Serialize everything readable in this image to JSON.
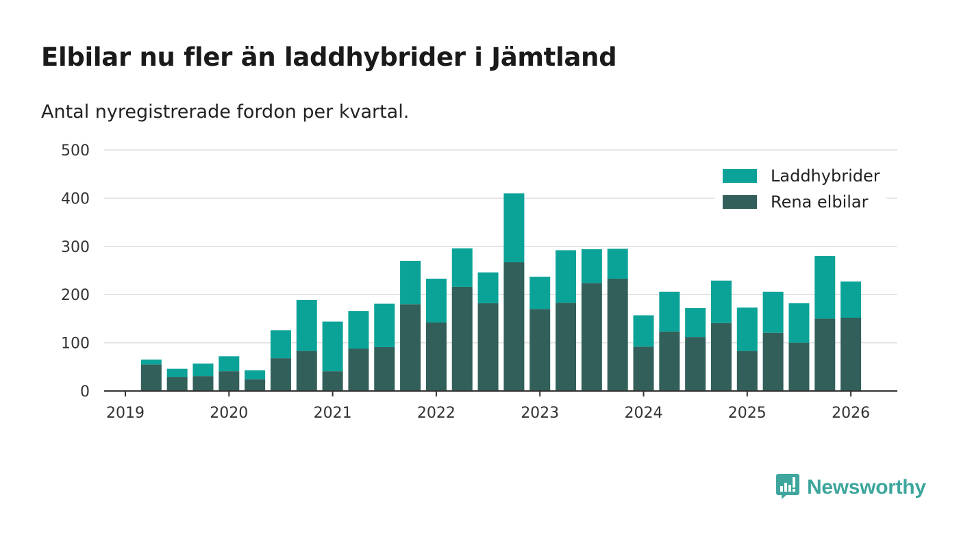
{
  "header": {
    "title": "Elbilar nu fler än laddhybrider i Jämtland",
    "subtitle": "Antal nyregistrerade fordon per kvartal."
  },
  "brand": {
    "name": "Newsworthy",
    "icon": "newsworthy-logo-icon",
    "color": "#3ea69c"
  },
  "colors": {
    "laddhybrider": "#0ba398",
    "elbilar": "#325f59",
    "grid": "#dddddd",
    "axis": "#333333"
  },
  "chart_data": {
    "type": "bar",
    "stacked": true,
    "title": "Elbilar nu fler än laddhybrider i Jämtland",
    "subtitle": "Antal nyregistrerade fordon per kvartal.",
    "xlabel": "",
    "ylabel": "",
    "ylim": [
      0,
      500
    ],
    "yticks": [
      0,
      100,
      200,
      300,
      400,
      500
    ],
    "xticks": [
      "2019",
      "2020",
      "2021",
      "2022",
      "2023",
      "2024",
      "2025",
      "2026"
    ],
    "x_start_year": 2019,
    "x_end_year": 2026.5,
    "legend_position": "top-right",
    "categories": [
      "2019 Q2",
      "2019 Q3",
      "2019 Q4",
      "2020 Q1",
      "2020 Q2",
      "2020 Q3",
      "2020 Q4",
      "2021 Q1",
      "2021 Q2",
      "2021 Q3",
      "2021 Q4",
      "2022 Q1",
      "2022 Q2",
      "2022 Q3",
      "2022 Q4",
      "2023 Q1",
      "2023 Q2",
      "2023 Q3",
      "2023 Q4",
      "2024 Q1",
      "2024 Q2",
      "2024 Q3",
      "2024 Q4",
      "2025 Q1",
      "2025 Q2",
      "2025 Q3",
      "2025 Q4",
      "2026 Q1"
    ],
    "x_positions": [
      2019.25,
      2019.5,
      2019.75,
      2020.0,
      2020.25,
      2020.5,
      2020.75,
      2021.0,
      2021.25,
      2021.5,
      2021.75,
      2022.0,
      2022.25,
      2022.5,
      2022.75,
      2023.0,
      2023.25,
      2023.5,
      2023.75,
      2024.0,
      2024.25,
      2024.5,
      2024.75,
      2025.0,
      2025.25,
      2025.5,
      2025.75,
      2026.0
    ],
    "series": [
      {
        "name": "Rena elbilar",
        "color": "#325f59",
        "values": [
          55,
          29,
          31,
          41,
          24,
          68,
          83,
          41,
          88,
          91,
          180,
          142,
          216,
          182,
          267,
          170,
          183,
          224,
          233,
          92,
          123,
          112,
          141,
          83,
          121,
          100,
          150,
          152
        ]
      },
      {
        "name": "Laddhybrider",
        "color": "#0ba398",
        "values": [
          10,
          17,
          26,
          31,
          19,
          58,
          106,
          103,
          78,
          90,
          90,
          91,
          80,
          64,
          143,
          67,
          109,
          70,
          62,
          65,
          83,
          60,
          88,
          90,
          85,
          82,
          130,
          75
        ]
      }
    ],
    "legend": [
      {
        "name": "Laddhybrider",
        "color": "#0ba398"
      },
      {
        "name": "Rena elbilar",
        "color": "#325f59"
      }
    ]
  }
}
